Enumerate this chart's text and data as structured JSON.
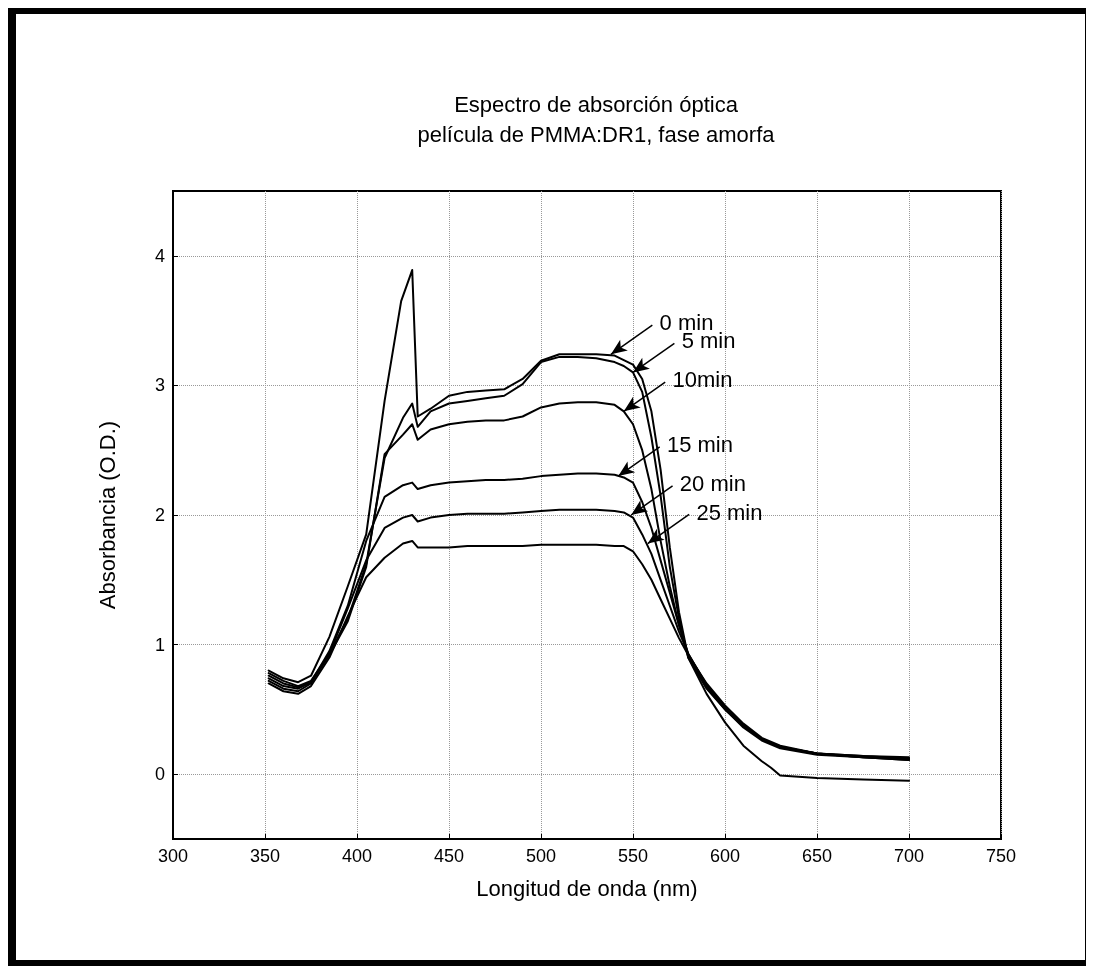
{
  "chart_data": {
    "type": "line",
    "title": "Espectro de absorción óptica\npelícula de PMMA:DR1, fase amorfa",
    "xlabel": "Longitud de onda (nm)",
    "ylabel": "Absorbancia (O.D.)",
    "xlim": [
      300,
      750
    ],
    "xticks": [
      300,
      350,
      400,
      450,
      500,
      550,
      600,
      650,
      700,
      750
    ],
    "ylim": [
      -0.5,
      4.5
    ],
    "yticks": [
      0,
      1,
      2,
      3,
      4
    ],
    "grid": true,
    "marker": "none",
    "line_style": "solid",
    "series": [
      {
        "color": "#000000",
        "x": [
          352,
          360,
          368,
          375,
          385,
          395,
          405,
          415,
          424,
          430,
          433,
          440,
          450,
          460,
          470,
          480,
          490,
          500,
          510,
          520,
          530,
          540,
          550,
          555,
          560,
          565,
          570,
          575,
          580,
          590,
          600,
          610,
          620,
          625,
          630,
          650,
          675,
          700
        ],
        "values": [
          0.8,
          0.74,
          0.71,
          0.76,
          1.06,
          1.45,
          1.85,
          2.88,
          3.65,
          3.89,
          2.76,
          2.82,
          2.92,
          2.95,
          2.96,
          2.97,
          3.05,
          3.19,
          3.24,
          3.24,
          3.24,
          3.23,
          3.16,
          3.05,
          2.8,
          2.35,
          1.75,
          1.25,
          0.9,
          0.62,
          0.4,
          0.22,
          0.1,
          0.05,
          -0.01,
          -0.03,
          -0.04,
          -0.05
        ]
      },
      {
        "color": "#000000",
        "x": [
          352,
          360,
          368,
          375,
          385,
          395,
          405,
          415,
          425,
          430,
          433,
          440,
          450,
          460,
          470,
          480,
          490,
          500,
          510,
          520,
          530,
          540,
          545,
          550,
          555,
          560,
          565,
          570,
          575,
          580,
          590,
          600,
          610,
          620,
          630,
          650,
          675,
          700
        ],
        "values": [
          0.78,
          0.72,
          0.68,
          0.72,
          0.93,
          1.2,
          1.62,
          2.44,
          2.75,
          2.86,
          2.68,
          2.8,
          2.86,
          2.88,
          2.9,
          2.92,
          3.01,
          3.18,
          3.22,
          3.22,
          3.21,
          3.18,
          3.15,
          3.1,
          2.95,
          2.6,
          2.15,
          1.6,
          1.2,
          0.9,
          0.66,
          0.5,
          0.37,
          0.27,
          0.21,
          0.16,
          0.14,
          0.13
        ]
      },
      {
        "color": "#000000",
        "x": [
          352,
          360,
          368,
          375,
          385,
          395,
          405,
          415,
          425,
          430,
          433,
          440,
          450,
          460,
          470,
          480,
          490,
          500,
          510,
          520,
          530,
          540,
          545,
          550,
          555,
          560,
          565,
          570,
          575,
          580,
          590,
          600,
          610,
          620,
          630,
          650,
          675,
          700
        ],
        "values": [
          0.76,
          0.7,
          0.67,
          0.71,
          0.92,
          1.18,
          1.6,
          2.47,
          2.62,
          2.7,
          2.58,
          2.66,
          2.7,
          2.72,
          2.73,
          2.73,
          2.76,
          2.83,
          2.86,
          2.87,
          2.87,
          2.85,
          2.8,
          2.7,
          2.5,
          2.2,
          1.8,
          1.45,
          1.15,
          0.92,
          0.67,
          0.5,
          0.36,
          0.26,
          0.2,
          0.15,
          0.13,
          0.12
        ]
      },
      {
        "color": "#000000",
        "x": [
          352,
          360,
          368,
          375,
          385,
          395,
          405,
          415,
          425,
          430,
          433,
          440,
          450,
          460,
          470,
          480,
          490,
          500,
          510,
          520,
          530,
          540,
          545,
          550,
          555,
          560,
          565,
          570,
          575,
          580,
          590,
          600,
          610,
          620,
          630,
          650,
          675,
          700
        ],
        "values": [
          0.74,
          0.68,
          0.66,
          0.71,
          0.95,
          1.3,
          1.8,
          2.14,
          2.23,
          2.25,
          2.2,
          2.23,
          2.25,
          2.26,
          2.27,
          2.27,
          2.28,
          2.3,
          2.31,
          2.32,
          2.32,
          2.31,
          2.29,
          2.25,
          2.1,
          1.9,
          1.65,
          1.4,
          1.15,
          0.93,
          0.68,
          0.51,
          0.37,
          0.27,
          0.21,
          0.16,
          0.14,
          0.12
        ]
      },
      {
        "color": "#000000",
        "x": [
          352,
          360,
          368,
          375,
          385,
          395,
          405,
          415,
          425,
          430,
          433,
          440,
          450,
          460,
          470,
          480,
          490,
          500,
          510,
          520,
          530,
          540,
          545,
          550,
          555,
          560,
          565,
          570,
          575,
          580,
          590,
          600,
          610,
          620,
          630,
          650,
          675,
          700
        ],
        "values": [
          0.72,
          0.66,
          0.64,
          0.7,
          0.93,
          1.28,
          1.65,
          1.9,
          1.98,
          2.0,
          1.95,
          1.98,
          2.0,
          2.01,
          2.01,
          2.01,
          2.02,
          2.03,
          2.04,
          2.04,
          2.04,
          2.03,
          2.02,
          1.98,
          1.85,
          1.7,
          1.5,
          1.3,
          1.1,
          0.93,
          0.69,
          0.52,
          0.38,
          0.27,
          0.21,
          0.16,
          0.13,
          0.11
        ]
      },
      {
        "color": "#000000",
        "x": [
          352,
          360,
          368,
          375,
          385,
          395,
          405,
          415,
          425,
          430,
          433,
          440,
          450,
          460,
          470,
          480,
          490,
          500,
          510,
          520,
          530,
          540,
          545,
          550,
          555,
          560,
          565,
          570,
          575,
          580,
          590,
          600,
          610,
          620,
          630,
          650,
          675,
          700
        ],
        "values": [
          0.7,
          0.64,
          0.62,
          0.68,
          0.9,
          1.22,
          1.52,
          1.67,
          1.78,
          1.8,
          1.75,
          1.75,
          1.75,
          1.76,
          1.76,
          1.76,
          1.76,
          1.77,
          1.77,
          1.77,
          1.77,
          1.76,
          1.76,
          1.72,
          1.62,
          1.5,
          1.35,
          1.2,
          1.05,
          0.92,
          0.7,
          0.53,
          0.39,
          0.28,
          0.22,
          0.16,
          0.13,
          0.11
        ]
      }
    ],
    "annotations": [
      {
        "text": "0 min",
        "x": 538,
        "y": 3.24
      },
      {
        "text": "5 min",
        "x": 550,
        "y": 3.1
      },
      {
        "text": "10min",
        "x": 545,
        "y": 2.8
      },
      {
        "text": "15 min",
        "x": 542,
        "y": 2.3
      },
      {
        "text": "20 min",
        "x": 549,
        "y": 2.0
      },
      {
        "text": "25 min",
        "x": 558,
        "y": 1.78
      }
    ]
  }
}
